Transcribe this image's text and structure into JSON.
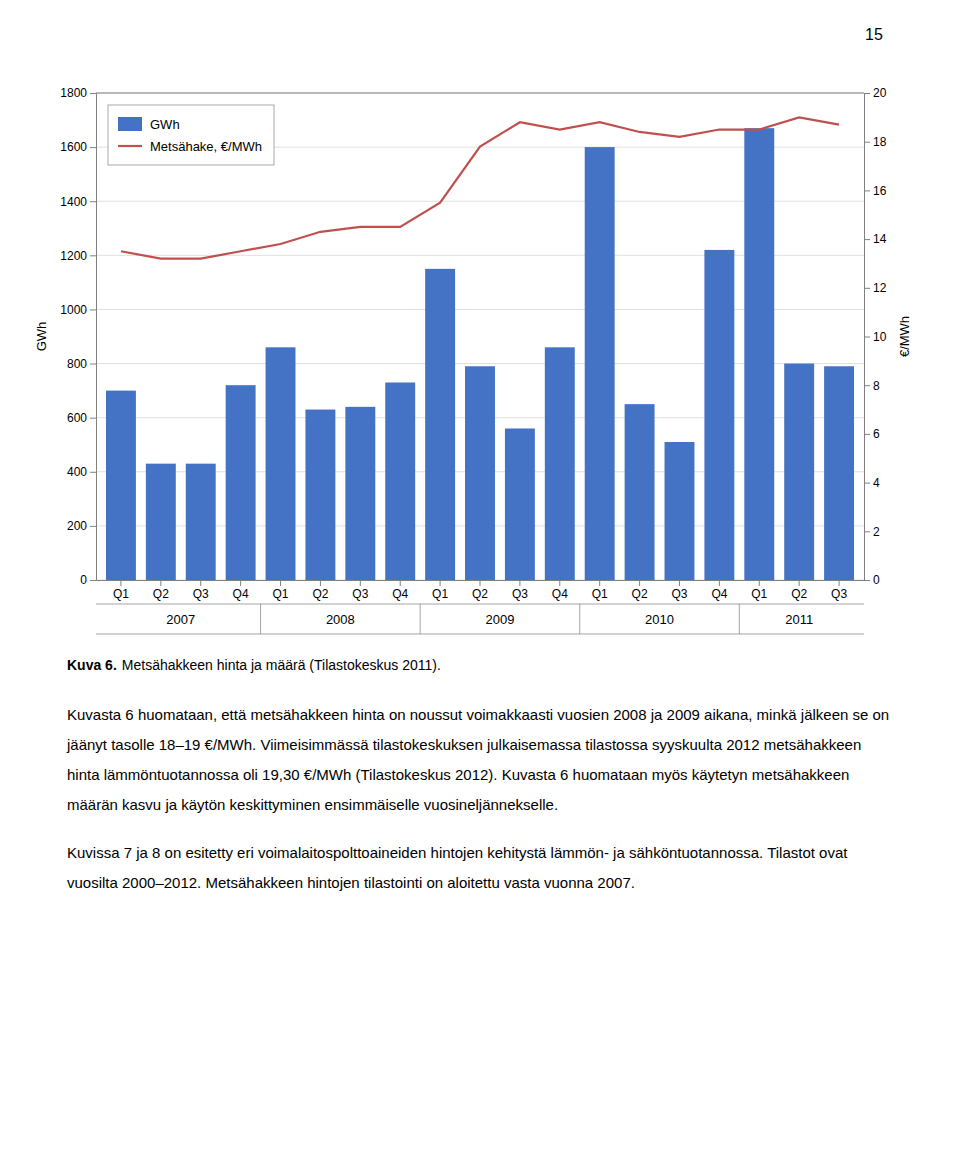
{
  "chart_data": {
    "type": "bar",
    "title": "Kuva 6.",
    "subtitle": "Metsähakkeen hinta ja määrä (Tilastokeskus 2011).",
    "categories": [
      "Q1",
      "Q2",
      "Q3",
      "Q4",
      "Q1",
      "Q2",
      "Q3",
      "Q4",
      "Q1",
      "Q2",
      "Q3",
      "Q4",
      "Q1",
      "Q2",
      "Q3",
      "Q4",
      "Q1",
      "Q2",
      "Q3"
    ],
    "years": [
      "2007",
      "2008",
      "2009",
      "2010",
      "2011"
    ],
    "series": [
      {
        "name": "GWh",
        "type": "bar",
        "color": "#4472C4",
        "values": [
          700,
          430,
          430,
          720,
          860,
          630,
          640,
          730,
          1150,
          790,
          560,
          860,
          1600,
          650,
          510,
          1220,
          1670,
          800,
          790
        ]
      },
      {
        "name": "Metsähake, €/MWh",
        "type": "line",
        "axis": "y2",
        "color": "#C0504D",
        "values": [
          13.5,
          13.2,
          13.2,
          13.5,
          13.8,
          14.3,
          14.5,
          14.5,
          15.5,
          17.8,
          18.8,
          18.5,
          18.8,
          18.4,
          18.2,
          18.5,
          18.5,
          19.0,
          18.7
        ]
      }
    ],
    "ylabel": "GWh",
    "y2label": "€/MWh",
    "ylim": [
      0,
      1800
    ],
    "yticks": [
      0,
      200,
      400,
      600,
      800,
      1000,
      1200,
      1400,
      1600,
      1800
    ],
    "y2lim": [
      0,
      20
    ],
    "y2ticks": [
      0,
      2,
      4,
      6,
      8,
      10,
      12,
      14,
      16,
      18,
      20
    ],
    "grid": true,
    "legend": "upper left",
    "annotations": [
      "15",
      "Kuvasta 6 huomataan, että metsähakkeen hinta on noussut voimakkaasti vuosien 2008 ja 2009 aikana, minkä jälkeen se on jäänyt tasolle 18–19 €/MWh. Viimeisimmässä tilastokeskuksen julkaisemassa tilastossa syyskuulta 2012 metsähakkeen hinta lämmöntuotannossa oli 19,30 €/MWh (Tilastokeskus 2012). Kuvasta 6 huomataan myös käytetyn metsähakkeen määrän kasvu ja käytön keskittyminen ensimmäiselle vuosineljännekselle.",
      "Kuvissa 7 ja 8 on esitetty eri voimalaitospolttoaineiden hintojen kehitystä lämmön- ja sähköntuotannossa. Tilastot ovat vuosilta 2000–2012. Metsähakkeen hintojen tilastointi on aloitettu vasta vuonna 2007."
    ]
  }
}
